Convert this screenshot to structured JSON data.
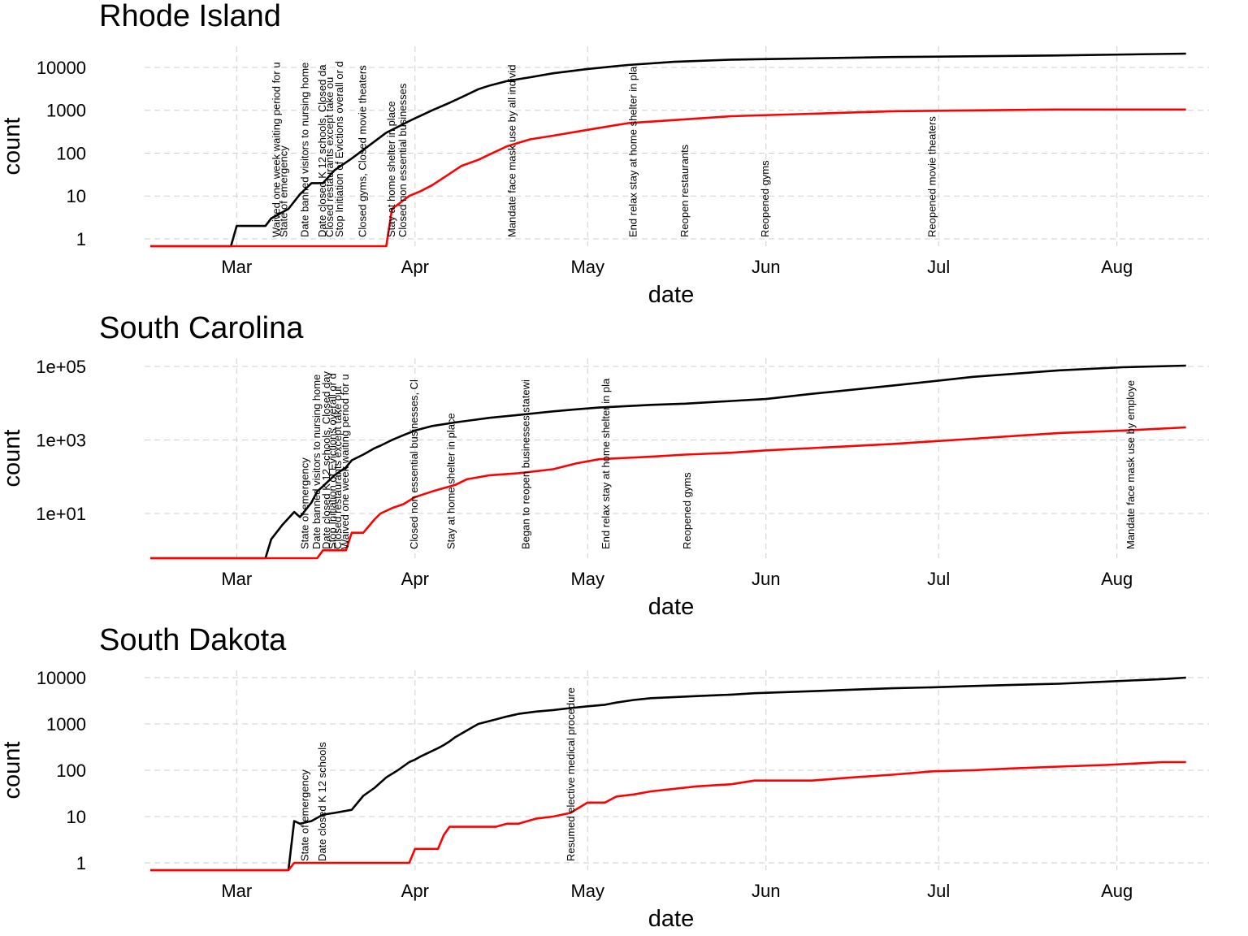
{
  "chart_data": [
    {
      "type": "line",
      "title": "Rhode Island",
      "xlabel": "date",
      "ylabel": "count",
      "yscale": "log",
      "grid": true,
      "xlim": [
        45,
        230
      ],
      "xticks": [
        {
          "value": 61,
          "label": "Mar"
        },
        {
          "value": 92,
          "label": "Apr"
        },
        {
          "value": 122,
          "label": "May"
        },
        {
          "value": 153,
          "label": "Jun"
        },
        {
          "value": 183,
          "label": "Jul"
        },
        {
          "value": 214,
          "label": "Aug"
        }
      ],
      "ylim": [
        0.675,
        31100
      ],
      "yticks": [
        1,
        10,
        100,
        1000,
        10000
      ],
      "x": [
        46,
        60,
        61,
        66,
        67,
        70,
        72,
        74,
        76,
        78,
        81,
        84,
        87,
        88,
        91,
        93,
        95,
        98,
        100,
        103,
        105,
        108,
        112,
        116,
        122,
        129,
        137,
        147,
        161,
        175,
        203,
        226
      ],
      "series": [
        {
          "color": "#000000",
          "values": [
            0,
            0,
            2,
            2,
            3,
            5,
            11,
            20,
            20,
            40,
            75,
            150,
            300,
            350,
            560,
            750,
            1000,
            1500,
            2000,
            3100,
            3800,
            4800,
            5900,
            7300,
            9200,
            11400,
            13500,
            15200,
            16300,
            17500,
            19000,
            21000
          ]
        },
        {
          "color": "#ff0000",
          "values": [
            0,
            0,
            0,
            0,
            0,
            0,
            0,
            0,
            0,
            0,
            0,
            0,
            0,
            5,
            10,
            13,
            18,
            33,
            50,
            70,
            94,
            145,
            210,
            255,
            350,
            500,
            590,
            730,
            830,
            950,
            1040,
            1040
          ]
        }
      ],
      "annotations": [
        {
          "x": 68,
          "text": "Waived one week waiting period for u"
        },
        {
          "x": 69.3,
          "text": "State of emergency"
        },
        {
          "x": 73,
          "text": "Date banned visitors to nursing home"
        },
        {
          "x": 76,
          "text": "Date closed K 12 schools, Closed da"
        },
        {
          "x": 77.3,
          "text": "Closed restaurants except take ou"
        },
        {
          "x": 79,
          "text": "Stop Initiation of Evictions overall or d"
        },
        {
          "x": 83,
          "text": "Closed gyms, Closed movie theaters"
        },
        {
          "x": 88,
          "text": "Stay at home  shelter in place"
        },
        {
          "x": 90,
          "text": "Closed non essential businesses"
        },
        {
          "x": 109,
          "text": "Mandate face mask use by all individ"
        },
        {
          "x": 130,
          "text": "End relax stay at home shelter in pla"
        },
        {
          "x": 139,
          "text": "Reopen restaurants"
        },
        {
          "x": 153,
          "text": "Reopened gyms"
        },
        {
          "x": 182,
          "text": "Reopened movie theaters"
        }
      ]
    },
    {
      "type": "line",
      "title": "South Carolina",
      "xlabel": "date",
      "ylabel": "count",
      "yscale": "log",
      "grid": true,
      "xlim": [
        45,
        230
      ],
      "xticks": [
        {
          "value": 61,
          "label": "Mar"
        },
        {
          "value": 92,
          "label": "Apr"
        },
        {
          "value": 122,
          "label": "May"
        },
        {
          "value": 153,
          "label": "Jun"
        },
        {
          "value": 183,
          "label": "Jul"
        },
        {
          "value": 214,
          "label": "Aug"
        }
      ],
      "ylim": [
        0.61,
        166000
      ],
      "yticks": [
        {
          "value": 10,
          "label": "1e+01"
        },
        {
          "value": 1000,
          "label": "1e+03"
        },
        {
          "value": 100000,
          "label": "1e+05"
        }
      ],
      "x": [
        46,
        66,
        67,
        69,
        71,
        72,
        74,
        75,
        76,
        78,
        80,
        81,
        83,
        85,
        86,
        88,
        90,
        92,
        95,
        99,
        101,
        105,
        110,
        116,
        120,
        124,
        133,
        139,
        147,
        153,
        161,
        175,
        189,
        204,
        215,
        226
      ],
      "series": [
        {
          "color": "#000000",
          "values": [
            0,
            0,
            2,
            5,
            11,
            8,
            20,
            40,
            55,
            110,
            180,
            280,
            400,
            600,
            700,
            1000,
            1350,
            1800,
            2400,
            3000,
            3300,
            4000,
            4800,
            6000,
            6800,
            7600,
            9000,
            9700,
            11500,
            13000,
            18000,
            30000,
            52000,
            78000,
            95000,
            105000
          ]
        },
        {
          "color": "#ff0000",
          "values": [
            0,
            0,
            0,
            0,
            0,
            0,
            0,
            0,
            1,
            1,
            1,
            3,
            3,
            7,
            10,
            14,
            18,
            28,
            40,
            60,
            85,
            110,
            125,
            160,
            230,
            300,
            350,
            400,
            450,
            520,
            600,
            780,
            1080,
            1550,
            1800,
            2200
          ]
        }
      ],
      "annotations": [
        {
          "x": 73,
          "text": "State of emergency"
        },
        {
          "x": 75,
          "text": "Date banned visitors to nursing home"
        },
        {
          "x": 76.7,
          "text": "Date closed K 12 schools, Closed day"
        },
        {
          "x": 77.8,
          "text": "Stop Initiation of Evictions overall or d"
        },
        {
          "x": 78.7,
          "text": "Closed restaurants except take out"
        },
        {
          "x": 80,
          "text": "Waived one week waiting period for u"
        },
        {
          "x": 92,
          "text": "Closed non essential businesses, Cl"
        },
        {
          "x": 98.4,
          "text": "Stay at home  shelter in place"
        },
        {
          "x": 111.4,
          "text": "Began to reopen businesses statewi"
        },
        {
          "x": 125.3,
          "text": "End relax stay at home shelter in pla"
        },
        {
          "x": 139.4,
          "text": "Reopened gyms"
        },
        {
          "x": 216.5,
          "text": "Mandate face mask use by employe"
        }
      ]
    },
    {
      "type": "line",
      "title": "South Dakota",
      "xlabel": "date",
      "ylabel": "count",
      "yscale": "log",
      "grid": true,
      "xlim": [
        45,
        230
      ],
      "xticks": [
        {
          "value": 61,
          "label": "Mar"
        },
        {
          "value": 92,
          "label": "Apr"
        },
        {
          "value": 122,
          "label": "May"
        },
        {
          "value": 153,
          "label": "Jun"
        },
        {
          "value": 183,
          "label": "Jul"
        },
        {
          "value": 214,
          "label": "Aug"
        }
      ],
      "ylim": [
        0.695,
        14400
      ],
      "yticks": [
        1,
        10,
        100,
        1000,
        10000
      ],
      "x": [
        46,
        70,
        71,
        72,
        74,
        76,
        78,
        81,
        83,
        85,
        87,
        89,
        91,
        92,
        93,
        96,
        97,
        98,
        99,
        102,
        103,
        106,
        108,
        110,
        113,
        116,
        119,
        122,
        125,
        127,
        130,
        133,
        141,
        147,
        151,
        161,
        168,
        175,
        182,
        189,
        196,
        204,
        212,
        222,
        226
      ],
      "series": [
        {
          "color": "#000000",
          "values": [
            0,
            0,
            8,
            7,
            8,
            11,
            12,
            14,
            28,
            42,
            70,
            100,
            150,
            170,
            200,
            300,
            350,
            420,
            520,
            850,
            1000,
            1250,
            1450,
            1650,
            1850,
            2000,
            2200,
            2400,
            2600,
            2900,
            3300,
            3600,
            4000,
            4300,
            4600,
            5100,
            5500,
            5900,
            6200,
            6600,
            7000,
            7400,
            8200,
            9300,
            10000
          ]
        },
        {
          "color": "#ff0000",
          "values": [
            0,
            0,
            1,
            1,
            1,
            1,
            1,
            1,
            1,
            1,
            1,
            1,
            1,
            2,
            2,
            2,
            4,
            6,
            6,
            6,
            6,
            6,
            7,
            7,
            9,
            10,
            12,
            20,
            20,
            27,
            30,
            35,
            45,
            50,
            60,
            60,
            70,
            80,
            95,
            100,
            110,
            120,
            130,
            150,
            150
          ]
        }
      ],
      "annotations": [
        {
          "x": 73,
          "text": "State of emergency"
        },
        {
          "x": 76,
          "text": "Date closed K 12 schools"
        },
        {
          "x": 119.2,
          "text": "Resumed elective medical procedure"
        }
      ]
    }
  ]
}
